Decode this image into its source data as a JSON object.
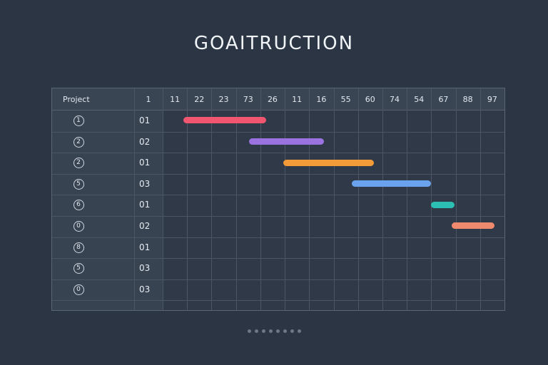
{
  "title": "GOAITRUCTION",
  "table": {
    "project_header": "Project",
    "code_header": "1",
    "columns": [
      "11",
      "22",
      "23",
      "73",
      "26",
      "11",
      "16",
      "55",
      "60",
      "74",
      "54",
      "67",
      "88",
      "97"
    ],
    "rows": [
      {
        "label": "1",
        "code": "01"
      },
      {
        "label": "2",
        "code": "02"
      },
      {
        "label": "2",
        "code": "01"
      },
      {
        "label": "5",
        "code": "03"
      },
      {
        "label": "6",
        "code": "01"
      },
      {
        "label": "0",
        "code": "02"
      },
      {
        "label": "8",
        "code": "01"
      },
      {
        "label": "5",
        "code": "03"
      },
      {
        "label": "0",
        "code": "03"
      }
    ]
  },
  "tasks": [
    {
      "row": 0,
      "start_col": 0.85,
      "end_col": 4.25,
      "color": "#f0566f"
    },
    {
      "row": 1,
      "start_col": 3.55,
      "end_col": 6.6,
      "color": "#9a73e0"
    },
    {
      "row": 2,
      "start_col": 4.95,
      "end_col": 8.65,
      "color": "#f29b38"
    },
    {
      "row": 3,
      "start_col": 7.75,
      "end_col": 11.0,
      "color": "#6aa2ee"
    },
    {
      "row": 4,
      "start_col": 11.0,
      "end_col": 11.95,
      "color": "#2cbfb4"
    },
    {
      "row": 5,
      "start_col": 11.85,
      "end_col": 13.6,
      "color": "#f08a6e"
    }
  ],
  "pager": {
    "count": 8
  }
}
